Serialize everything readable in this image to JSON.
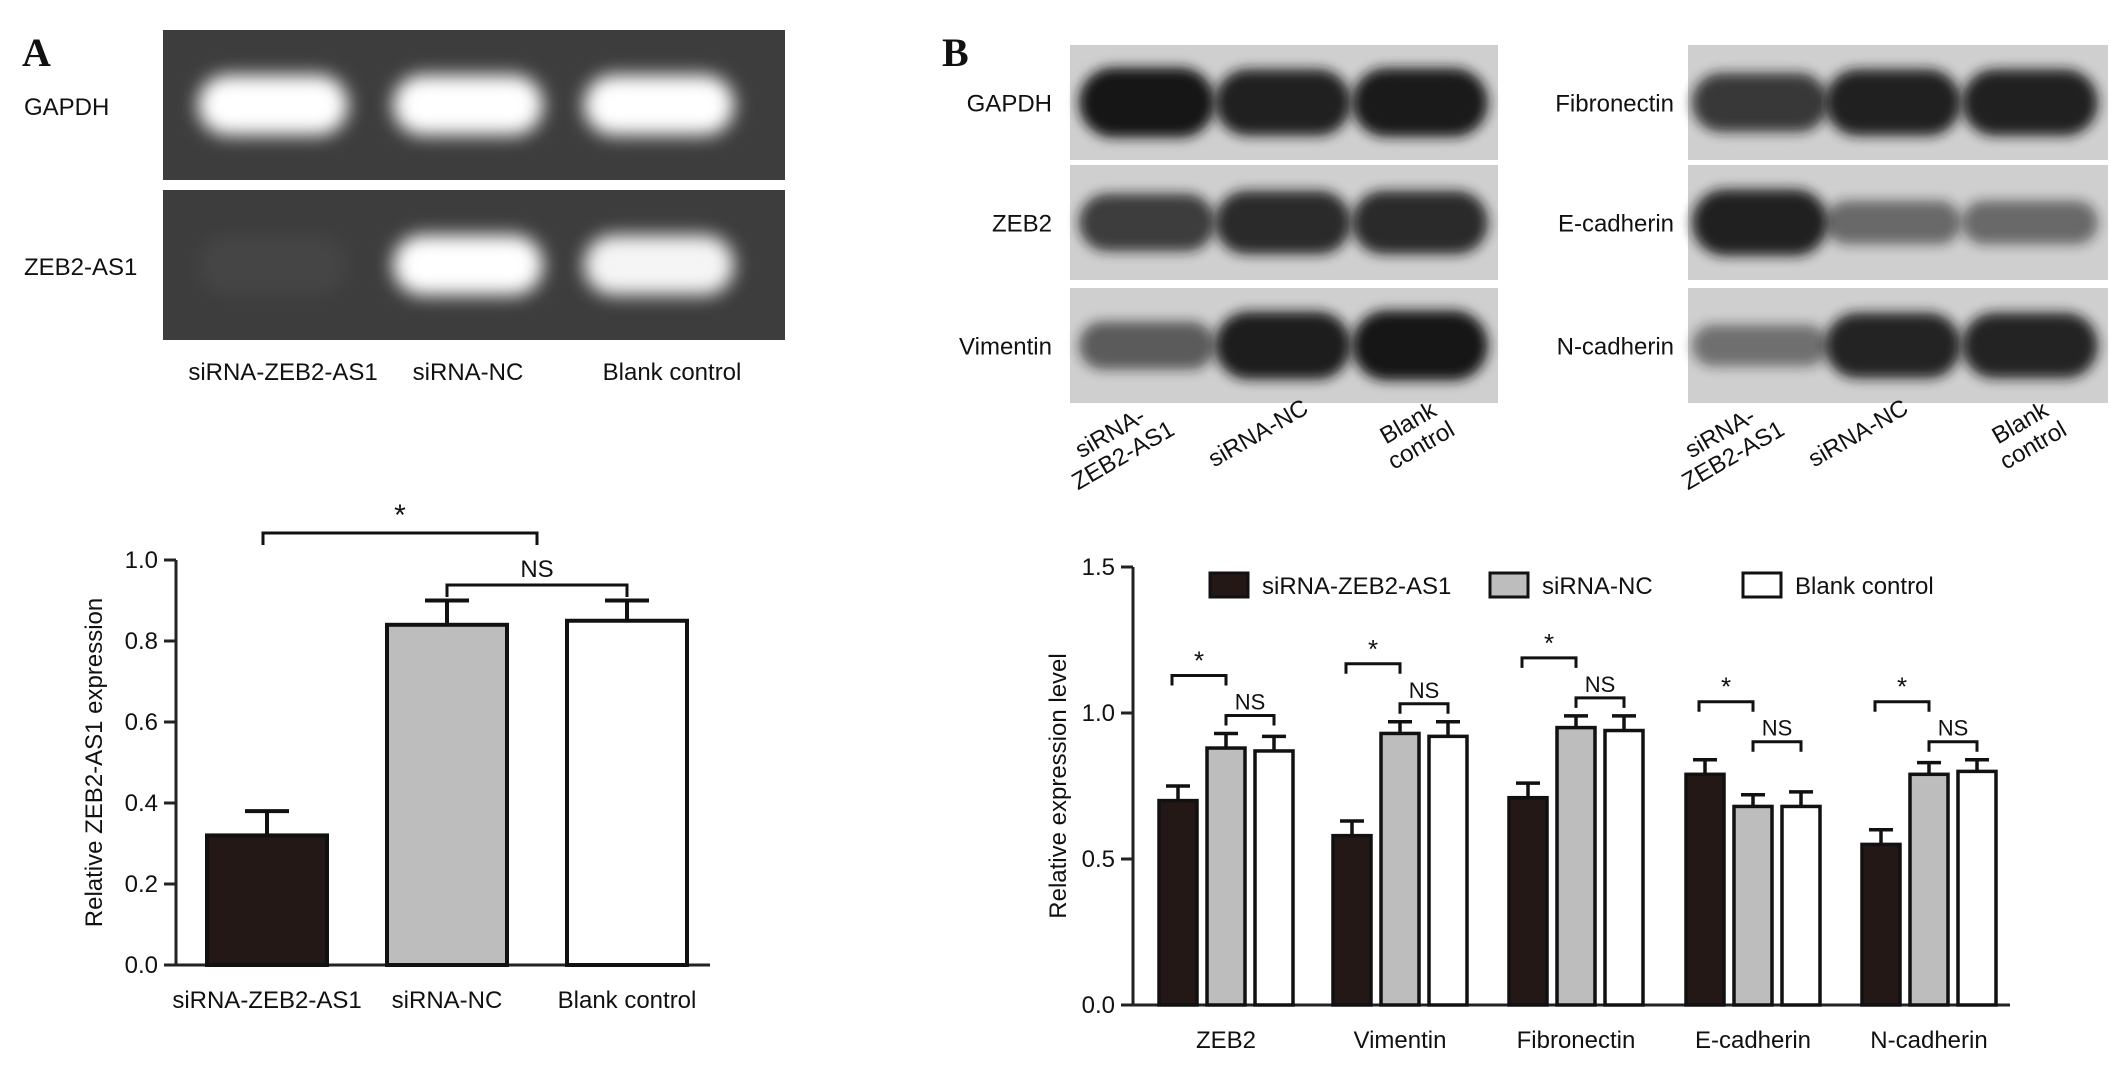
{
  "panels": {
    "A": {
      "letter": "A",
      "gel": {
        "rows": [
          {
            "label": "GAPDH",
            "bands": [
              1.0,
              1.0,
              1.0
            ]
          },
          {
            "label": "ZEB2-AS1",
            "bands": [
              0.04,
              1.0,
              0.95
            ]
          }
        ],
        "lane_labels": [
          "siRNA-ZEB2-AS1",
          "siRNA-NC",
          "Blank control"
        ],
        "colors": {
          "background": "#3d3d3d",
          "band": "#ffffff"
        }
      }
    },
    "B": {
      "letter": "B",
      "blots": [
        {
          "rows": [
            {
              "label": "GAPDH",
              "bands": [
                1.0,
                0.92,
                0.97
              ]
            },
            {
              "label": "ZEB2",
              "bands": [
                0.72,
                0.85,
                0.85
              ]
            },
            {
              "label": "Vimentin",
              "bands": [
                0.5,
                0.95,
                1.0
              ]
            }
          ],
          "lane_labels": [
            "siRNA-\nZEB2-AS1",
            "siRNA-NC",
            "Blank\ncontrol"
          ]
        },
        {
          "rows": [
            {
              "label": "Fibronectin",
              "bands": [
                0.75,
                0.92,
                0.92
              ]
            },
            {
              "label": "E-cadherin",
              "bands": [
                0.92,
                0.4,
                0.4
              ]
            },
            {
              "label": "N-cadherin",
              "bands": [
                0.35,
                0.9,
                0.9
              ]
            }
          ],
          "lane_labels": [
            "siRNA-\nZEB2-AS1",
            "siRNA-NC",
            "Blank\ncontrol"
          ]
        }
      ],
      "colors": {
        "background": "#cfcfcf",
        "band": "#151515"
      }
    }
  },
  "chart_data": [
    {
      "type": "bar",
      "categories": [
        "siRNA-ZEB2-AS1",
        "siRNA-NC",
        "Blank control"
      ],
      "values": [
        0.32,
        0.84,
        0.85
      ],
      "errors": [
        0.06,
        0.06,
        0.05
      ],
      "bar_colors": [
        "#231816",
        "#bdbdbd",
        "#ffffff"
      ],
      "title": "",
      "xlabel": "",
      "ylabel": "Relative ZEB2-AS1 expression",
      "ylim": [
        0,
        1.0
      ],
      "yticks": [
        "0.0",
        "0.2",
        "0.4",
        "0.6",
        "0.8",
        "1.0"
      ],
      "significance": [
        {
          "from": 0,
          "to": 1,
          "label": "*"
        },
        {
          "from": 1,
          "to": 2,
          "label": "NS"
        }
      ]
    },
    {
      "type": "bar",
      "categories": [
        "ZEB2",
        "Vimentin",
        "Fibronectin",
        "E-cadherin",
        "N-cadherin"
      ],
      "series": [
        {
          "name": "siRNA-ZEB2-AS1",
          "color": "#231816",
          "values": [
            0.7,
            0.58,
            0.71,
            0.79,
            0.55
          ],
          "errors": [
            0.05,
            0.05,
            0.05,
            0.05,
            0.05
          ]
        },
        {
          "name": "siRNA-NC",
          "color": "#bdbdbd",
          "values": [
            0.88,
            0.93,
            0.95,
            0.68,
            0.79
          ],
          "errors": [
            0.05,
            0.04,
            0.04,
            0.04,
            0.04
          ]
        },
        {
          "name": "Blank control",
          "color": "#ffffff",
          "values": [
            0.87,
            0.92,
            0.94,
            0.68,
            0.8
          ],
          "errors": [
            0.05,
            0.05,
            0.05,
            0.05,
            0.04
          ]
        }
      ],
      "title": "",
      "xlabel": "",
      "ylabel": "Relative expression level",
      "ylim": [
        0,
        1.5
      ],
      "yticks": [
        "0.0",
        "0.5",
        "1.0",
        "1.5"
      ],
      "legend_position": "top",
      "significance_per_group": [
        {
          "from": 0,
          "to": 1,
          "label": "*"
        },
        {
          "from": 1,
          "to": 2,
          "label": "NS"
        }
      ]
    }
  ]
}
